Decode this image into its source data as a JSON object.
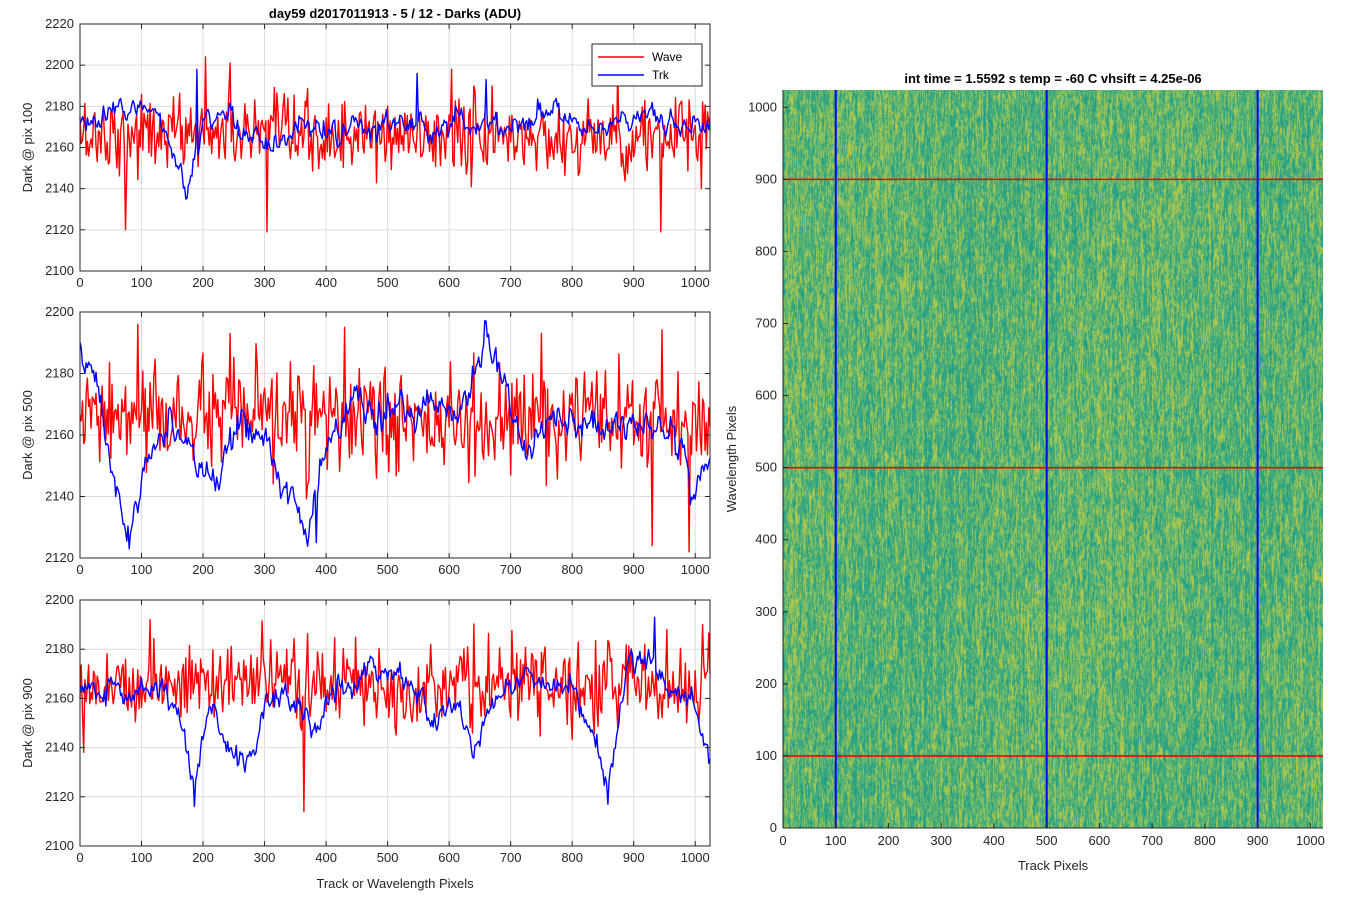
{
  "figure": {
    "title": "day59 d2017011913 - 5 / 12 - Darks (ADU)",
    "xlabel": "Track or Wavelength Pixels"
  },
  "colors": {
    "wave": "#ff0000",
    "trk": "#0000ff",
    "grid": "#dcdcdc",
    "axis": "#262626",
    "heatmap_low": "#1f9e89",
    "heatmap_high": "#b5c949"
  },
  "chart_data": [
    {
      "type": "line",
      "ylabel": "Dark @ pix 100",
      "xlim": [
        0,
        1024
      ],
      "ylim": [
        2100,
        2220
      ],
      "xticks": [
        0,
        100,
        200,
        300,
        400,
        500,
        600,
        700,
        800,
        900,
        1000
      ],
      "yticks": [
        2100,
        2120,
        2140,
        2160,
        2180,
        2200,
        2220
      ],
      "grid": true,
      "legend": {
        "position": "top-right",
        "entries": [
          "Wave",
          "Trk"
        ]
      },
      "series": [
        {
          "name": "Wave",
          "color": "#ff0000",
          "mean": 2166,
          "noise": 9,
          "anchors": [
            [
              0,
              2166
            ],
            [
              200,
              2168
            ],
            [
              400,
              2164
            ],
            [
              600,
              2166
            ],
            [
              800,
              2164
            ],
            [
              1024,
              2166
            ]
          ],
          "annotations": [
            [
              75,
              2120
            ],
            [
              205,
              2204
            ],
            [
              245,
              2201
            ],
            [
              305,
              2119
            ],
            [
              605,
              2198
            ],
            [
              875,
              2197
            ],
            [
              945,
              2119
            ],
            [
              1010,
              2140
            ]
          ]
        },
        {
          "name": "Trk",
          "color": "#0000ff",
          "mean": 2170,
          "noise": 4,
          "anchors": [
            [
              0,
              2170
            ],
            [
              40,
              2174
            ],
            [
              90,
              2182
            ],
            [
              130,
              2175
            ],
            [
              160,
              2150
            ],
            [
              175,
              2134
            ],
            [
              200,
              2170
            ],
            [
              240,
              2178
            ],
            [
              300,
              2162
            ],
            [
              400,
              2170
            ],
            [
              480,
              2168
            ],
            [
              520,
              2172
            ],
            [
              560,
              2168
            ],
            [
              620,
              2174
            ],
            [
              700,
              2170
            ],
            [
              760,
              2178
            ],
            [
              800,
              2172
            ],
            [
              840,
              2168
            ],
            [
              900,
              2176
            ],
            [
              950,
              2172
            ],
            [
              1000,
              2170
            ],
            [
              1024,
              2168
            ]
          ],
          "annotations": [
            [
              190,
              2198
            ],
            [
              548,
              2196
            ],
            [
              660,
              2193
            ]
          ]
        }
      ]
    },
    {
      "type": "line",
      "ylabel": "Dark @ pix 500",
      "xlim": [
        0,
        1024
      ],
      "ylim": [
        2120,
        2200
      ],
      "xticks": [
        0,
        100,
        200,
        300,
        400,
        500,
        600,
        700,
        800,
        900,
        1000
      ],
      "yticks": [
        2120,
        2140,
        2160,
        2180,
        2200
      ],
      "grid": true,
      "series": [
        {
          "name": "Wave",
          "color": "#ff0000",
          "mean": 2165,
          "noise": 8,
          "anchors": [
            [
              0,
              2165
            ],
            [
              300,
              2166
            ],
            [
              600,
              2163
            ],
            [
              1024,
              2165
            ]
          ],
          "annotations": [
            [
              95,
              2196
            ],
            [
              245,
              2193
            ],
            [
              430,
              2195
            ],
            [
              750,
              2193
            ],
            [
              990,
              2122
            ],
            [
              930,
              2124
            ]
          ]
        },
        {
          "name": "Trk",
          "color": "#0000ff",
          "mean": 2160,
          "noise": 3.5,
          "anchors": [
            [
              0,
              2188
            ],
            [
              30,
              2175
            ],
            [
              50,
              2150
            ],
            [
              75,
              2128
            ],
            [
              100,
              2145
            ],
            [
              130,
              2162
            ],
            [
              160,
              2160
            ],
            [
              190,
              2148
            ],
            [
              220,
              2145
            ],
            [
              260,
              2168
            ],
            [
              300,
              2160
            ],
            [
              330,
              2145
            ],
            [
              370,
              2128
            ],
            [
              400,
              2155
            ],
            [
              450,
              2172
            ],
            [
              500,
              2165
            ],
            [
              550,
              2170
            ],
            [
              620,
              2168
            ],
            [
              660,
              2188
            ],
            [
              690,
              2180
            ],
            [
              720,
              2158
            ],
            [
              780,
              2165
            ],
            [
              830,
              2160
            ],
            [
              870,
              2166
            ],
            [
              920,
              2162
            ],
            [
              960,
              2163
            ],
            [
              1000,
              2140
            ],
            [
              1024,
              2156
            ]
          ],
          "annotations": [
            [
              660,
              2197
            ],
            [
              80,
              2123
            ],
            [
              385,
              2125
            ]
          ]
        }
      ]
    },
    {
      "type": "line",
      "ylabel": "Dark @ pix 900",
      "xlim": [
        0,
        1024
      ],
      "ylim": [
        2100,
        2200
      ],
      "xticks": [
        0,
        100,
        200,
        300,
        400,
        500,
        600,
        700,
        800,
        900,
        1000
      ],
      "yticks": [
        2100,
        2120,
        2140,
        2160,
        2180,
        2200
      ],
      "grid": true,
      "series": [
        {
          "name": "Wave",
          "color": "#ff0000",
          "mean": 2166,
          "noise": 8,
          "anchors": [
            [
              0,
              2166
            ],
            [
              300,
              2167
            ],
            [
              600,
              2165
            ],
            [
              1024,
              2166
            ]
          ],
          "annotations": [
            [
              115,
              2192
            ],
            [
              365,
              2114
            ],
            [
              955,
              2188
            ],
            [
              1012,
              2190
            ]
          ]
        },
        {
          "name": "Trk",
          "color": "#0000ff",
          "mean": 2163,
          "noise": 3.5,
          "anchors": [
            [
              0,
              2165
            ],
            [
              60,
              2162
            ],
            [
              120,
              2164
            ],
            [
              160,
              2158
            ],
            [
              185,
              2122
            ],
            [
              210,
              2158
            ],
            [
              270,
              2130
            ],
            [
              300,
              2160
            ],
            [
              340,
              2162
            ],
            [
              380,
              2146
            ],
            [
              420,
              2165
            ],
            [
              470,
              2170
            ],
            [
              530,
              2168
            ],
            [
              570,
              2150
            ],
            [
              610,
              2158
            ],
            [
              640,
              2140
            ],
            [
              680,
              2162
            ],
            [
              720,
              2170
            ],
            [
              800,
              2163
            ],
            [
              860,
              2125
            ],
            [
              890,
              2172
            ],
            [
              930,
              2178
            ],
            [
              960,
              2165
            ],
            [
              1000,
              2155
            ],
            [
              1024,
              2137
            ]
          ],
          "annotations": [
            [
              186,
              2116
            ],
            [
              858,
              2117
            ],
            [
              935,
              2193
            ]
          ]
        }
      ]
    },
    {
      "type": "heatmap",
      "title": "int time = 1.5592 s    temp = -60 C    vhsift = 4.25e-06",
      "xlabel": "Track Pixels",
      "ylabel": "Wavelength Pixels",
      "xlim": [
        0,
        1024
      ],
      "ylim": [
        0,
        1024
      ],
      "xticks": [
        0,
        100,
        200,
        300,
        400,
        500,
        600,
        700,
        800,
        900,
        1000
      ],
      "yticks": [
        0,
        100,
        200,
        300,
        400,
        500,
        600,
        700,
        800,
        900,
        1000
      ],
      "vertical_markers": [
        100,
        500,
        900
      ],
      "horizontal_markers": [
        100,
        500,
        900
      ],
      "marker_colors": {
        "vertical": "#0000ff",
        "horizontal": "#ff0000"
      }
    }
  ]
}
